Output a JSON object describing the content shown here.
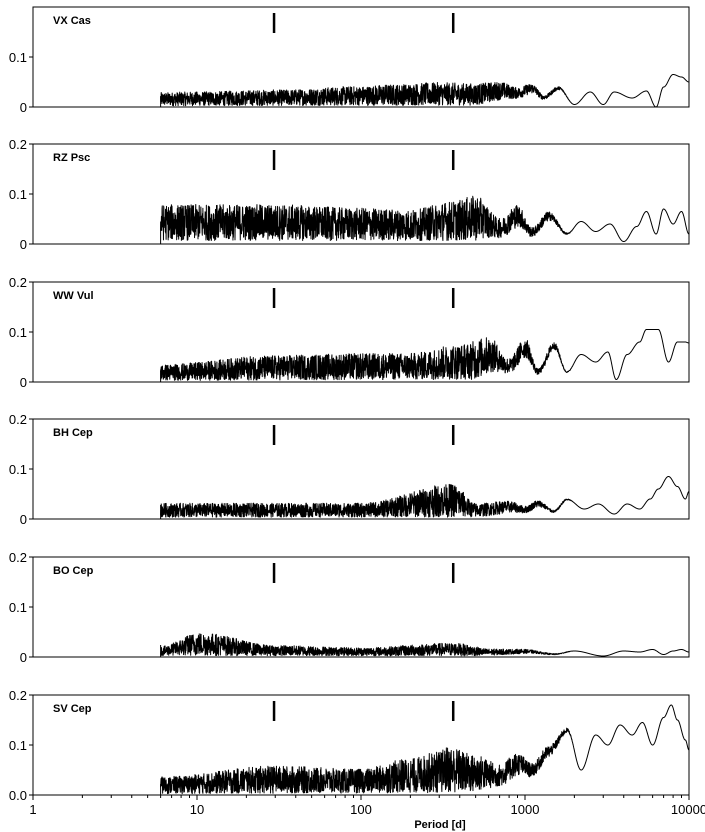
{
  "chart_data": {
    "type": "line",
    "xlabel": "Period [d]",
    "x_axis": {
      "scale": "log",
      "range": [
        1,
        10000
      ],
      "ticks": [
        1,
        10,
        100,
        1000,
        10000
      ],
      "tick_labels": [
        "1",
        "10",
        "100",
        "1000",
        "10000"
      ]
    },
    "markers_at_period": [
      29.5,
      365
    ],
    "panels": [
      {
        "name": "VX Cas",
        "y_ticks": [
          0,
          0.1
        ],
        "y_tick_labels": [
          "0",
          "0.1"
        ],
        "ylim": [
          0,
          0.2
        ],
        "noise": {
          "start": 6,
          "base": 0.012,
          "growth": 0.01,
          "amp": 0.014
        },
        "x": [
          6,
          10,
          30,
          100,
          150,
          300,
          500,
          700,
          900,
          1100,
          1300,
          1600,
          2000,
          2500,
          3000,
          3500,
          4500,
          5500,
          6300,
          7000,
          8000,
          9000,
          10000
        ],
        "y": [
          0.018,
          0.02,
          0.025,
          0.035,
          0.04,
          0.045,
          0.042,
          0.048,
          0.035,
          0.045,
          0.02,
          0.04,
          0.005,
          0.03,
          0.005,
          0.03,
          0.018,
          0.032,
          0.0,
          0.04,
          0.065,
          0.06,
          0.05
        ]
      },
      {
        "name": "RZ Psc",
        "y_ticks": [
          0,
          0.1,
          0.2
        ],
        "y_tick_labels": [
          "0",
          "0.1",
          "0.2"
        ],
        "ylim": [
          0,
          0.2
        ],
        "noise": {
          "start": 6,
          "base": 0.035,
          "growth": -0.002,
          "amp": 0.03
        },
        "x": [
          6,
          30,
          100,
          200,
          365,
          500,
          700,
          900,
          1100,
          1400,
          1800,
          2200,
          2700,
          3300,
          4000,
          4800,
          5500,
          6300,
          7000,
          8000,
          9000,
          10000
        ],
        "y": [
          0.06,
          0.06,
          0.05,
          0.045,
          0.07,
          0.085,
          0.03,
          0.07,
          0.02,
          0.06,
          0.02,
          0.045,
          0.025,
          0.04,
          0.005,
          0.035,
          0.065,
          0.02,
          0.07,
          0.04,
          0.065,
          0.02
        ]
      },
      {
        "name": "WW Vul",
        "y_ticks": [
          0,
          0.1,
          0.2
        ],
        "y_tick_labels": [
          "0",
          "0.1",
          "0.2"
        ],
        "ylim": [
          0,
          0.2
        ],
        "noise": {
          "start": 6,
          "base": 0.015,
          "growth": 0.018,
          "amp": 0.018
        },
        "x": [
          6,
          30,
          100,
          200,
          400,
          600,
          800,
          1000,
          1200,
          1500,
          1800,
          2200,
          2700,
          3200,
          3600,
          4200,
          5000,
          5500,
          6500,
          7500,
          8500,
          9500,
          10000
        ],
        "y": [
          0.02,
          0.045,
          0.05,
          0.05,
          0.075,
          0.095,
          0.04,
          0.09,
          0.02,
          0.08,
          0.02,
          0.055,
          0.04,
          0.06,
          0.005,
          0.055,
          0.08,
          0.105,
          0.105,
          0.04,
          0.08,
          0.08,
          0.078
        ]
      },
      {
        "name": "BH Cep",
        "y_ticks": [
          0,
          0.1,
          0.2
        ],
        "y_tick_labels": [
          "0",
          "0.1",
          "0.2"
        ],
        "ylim": [
          0,
          0.2
        ],
        "noise": {
          "start": 6,
          "base": 0.018,
          "growth": 0.002,
          "amp": 0.014
        },
        "x": [
          6,
          30,
          100,
          365,
          500,
          800,
          1000,
          1200,
          1500,
          1800,
          2300,
          2800,
          3500,
          4200,
          5000,
          5800,
          6500,
          7500,
          8500,
          9500,
          10000
        ],
        "y": [
          0.02,
          0.02,
          0.02,
          0.075,
          0.02,
          0.03,
          0.02,
          0.035,
          0.015,
          0.04,
          0.02,
          0.03,
          0.01,
          0.03,
          0.02,
          0.04,
          0.06,
          0.085,
          0.065,
          0.04,
          0.055
        ]
      },
      {
        "name": "BO Cep",
        "y_ticks": [
          0,
          0.1,
          0.2
        ],
        "y_tick_labels": [
          "0",
          "0.1",
          "0.2"
        ],
        "ylim": [
          0,
          0.2
        ],
        "noise": {
          "start": 6,
          "base": 0.014,
          "growth": -0.004,
          "amp": 0.008
        },
        "x": [
          6,
          10.4,
          30,
          100,
          365,
          600,
          1000,
          1500,
          2000,
          3000,
          4000,
          5000,
          6000,
          7000,
          8000,
          9000,
          10000
        ],
        "y": [
          0.015,
          0.055,
          0.018,
          0.012,
          0.025,
          0.01,
          0.012,
          0.005,
          0.012,
          0.002,
          0.012,
          0.01,
          0.015,
          0.005,
          0.012,
          0.015,
          0.01
        ]
      },
      {
        "name": "SV Cep",
        "y_ticks": [
          0,
          0.1,
          0.2
        ],
        "y_tick_labels": [
          "0.0",
          "0.1",
          "0.2"
        ],
        "ylim": [
          0,
          0.2
        ],
        "noise": {
          "start": 6,
          "base": 0.012,
          "growth": 0.02,
          "amp": 0.02
        },
        "x": [
          6,
          30,
          100,
          200,
          300,
          340,
          500,
          700,
          900,
          1100,
          1400,
          1800,
          2200,
          2700,
          3200,
          3800,
          4500,
          5200,
          6000,
          7000,
          7800,
          8500,
          9500,
          10000
        ],
        "y": [
          0.02,
          0.05,
          0.04,
          0.07,
          0.09,
          0.105,
          0.08,
          0.055,
          0.085,
          0.06,
          0.1,
          0.135,
          0.05,
          0.12,
          0.1,
          0.14,
          0.12,
          0.145,
          0.1,
          0.155,
          0.18,
          0.15,
          0.11,
          0.09
        ]
      }
    ]
  }
}
